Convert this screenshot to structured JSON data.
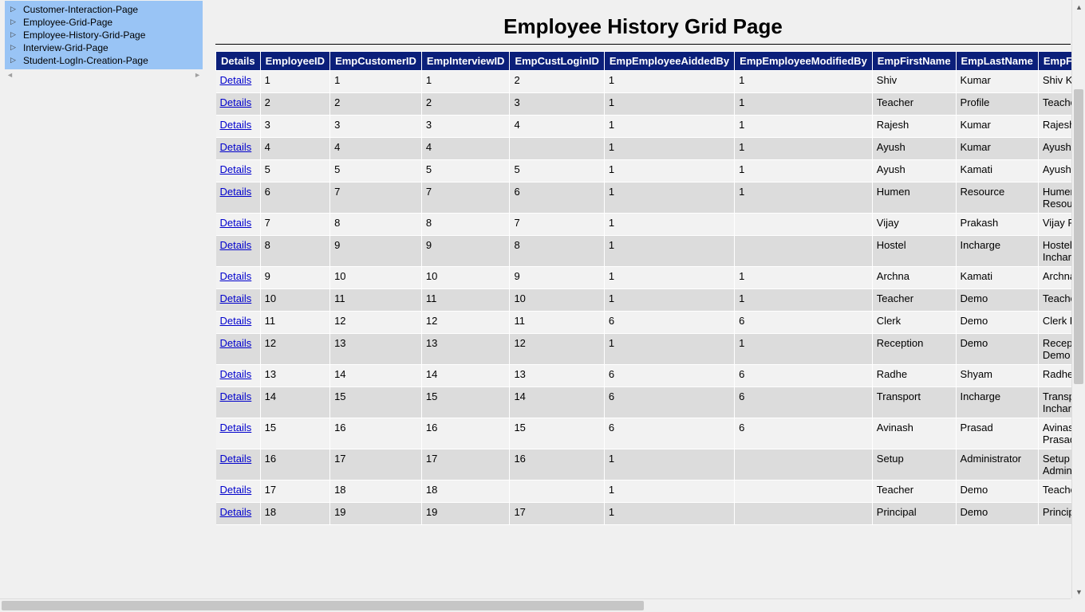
{
  "sidebar": {
    "background_color": "#99c4f5",
    "items": [
      {
        "label": "Customer-Interaction-Page"
      },
      {
        "label": "Employee-Grid-Page"
      },
      {
        "label": "Employee-History-Grid-Page"
      },
      {
        "label": "Interview-Grid-Page"
      },
      {
        "label": "Student-LogIn-Creation-Page"
      }
    ]
  },
  "page": {
    "title": "Employee History Grid Page"
  },
  "grid": {
    "header_bg": "#0b1f7a",
    "header_fg": "#ffffff",
    "row_odd_bg": "#f2f2f2",
    "row_even_bg": "#dcdcdc",
    "details_link_text": "Details",
    "details_link_color": "#0000cc",
    "columns": [
      "Details",
      "EmployeeID",
      "EmpCustomerID",
      "EmpInterviewID",
      "EmpCustLoginID",
      "EmpEmployeeAiddedBy",
      "EmpEmployeeModifiedBy",
      "EmpFirstName",
      "EmpLastName",
      "EmpFullName"
    ],
    "rows": [
      {
        "EmployeeID": "1",
        "EmpCustomerID": "1",
        "EmpInterviewID": "1",
        "EmpCustLoginID": "2",
        "EmpEmployeeAiddedBy": "1",
        "EmpEmployeeModifiedBy": "1",
        "EmpFirstName": "Shiv",
        "EmpLastName": "Kumar",
        "EmpFullName": "Shiv Kumar"
      },
      {
        "EmployeeID": "2",
        "EmpCustomerID": "2",
        "EmpInterviewID": "2",
        "EmpCustLoginID": "3",
        "EmpEmployeeAiddedBy": "1",
        "EmpEmployeeModifiedBy": "1",
        "EmpFirstName": "Teacher",
        "EmpLastName": "Profile",
        "EmpFullName": "Teacher Profile"
      },
      {
        "EmployeeID": "3",
        "EmpCustomerID": "3",
        "EmpInterviewID": "3",
        "EmpCustLoginID": "4",
        "EmpEmployeeAiddedBy": "1",
        "EmpEmployeeModifiedBy": "1",
        "EmpFirstName": "Rajesh",
        "EmpLastName": "Kumar",
        "EmpFullName": "Rajesh Kumar"
      },
      {
        "EmployeeID": "4",
        "EmpCustomerID": "4",
        "EmpInterviewID": "4",
        "EmpCustLoginID": "",
        "EmpEmployeeAiddedBy": "1",
        "EmpEmployeeModifiedBy": "1",
        "EmpFirstName": "Ayush",
        "EmpLastName": "Kumar",
        "EmpFullName": "Ayush Kumar"
      },
      {
        "EmployeeID": "5",
        "EmpCustomerID": "5",
        "EmpInterviewID": "5",
        "EmpCustLoginID": "5",
        "EmpEmployeeAiddedBy": "1",
        "EmpEmployeeModifiedBy": "1",
        "EmpFirstName": "Ayush",
        "EmpLastName": "Kamati",
        "EmpFullName": "Ayush Kamati"
      },
      {
        "EmployeeID": "6",
        "EmpCustomerID": "7",
        "EmpInterviewID": "7",
        "EmpCustLoginID": "6",
        "EmpEmployeeAiddedBy": "1",
        "EmpEmployeeModifiedBy": "1",
        "EmpFirstName": "Humen",
        "EmpLastName": "Resource",
        "EmpFullName": "Humen Resource"
      },
      {
        "EmployeeID": "7",
        "EmpCustomerID": "8",
        "EmpInterviewID": "8",
        "EmpCustLoginID": "7",
        "EmpEmployeeAiddedBy": "1",
        "EmpEmployeeModifiedBy": "",
        "EmpFirstName": "Vijay",
        "EmpLastName": "Prakash",
        "EmpFullName": "Vijay Prakash"
      },
      {
        "EmployeeID": "8",
        "EmpCustomerID": "9",
        "EmpInterviewID": "9",
        "EmpCustLoginID": "8",
        "EmpEmployeeAiddedBy": "1",
        "EmpEmployeeModifiedBy": "",
        "EmpFirstName": "Hostel",
        "EmpLastName": "Incharge",
        "EmpFullName": "Hostel Incharge"
      },
      {
        "EmployeeID": "9",
        "EmpCustomerID": "10",
        "EmpInterviewID": "10",
        "EmpCustLoginID": "9",
        "EmpEmployeeAiddedBy": "1",
        "EmpEmployeeModifiedBy": "1",
        "EmpFirstName": "Archna",
        "EmpLastName": "Kamati",
        "EmpFullName": "Archna Kamati"
      },
      {
        "EmployeeID": "10",
        "EmpCustomerID": "11",
        "EmpInterviewID": "11",
        "EmpCustLoginID": "10",
        "EmpEmployeeAiddedBy": "1",
        "EmpEmployeeModifiedBy": "1",
        "EmpFirstName": "Teacher",
        "EmpLastName": "Demo",
        "EmpFullName": "Teacher Demo"
      },
      {
        "EmployeeID": "11",
        "EmpCustomerID": "12",
        "EmpInterviewID": "12",
        "EmpCustLoginID": "11",
        "EmpEmployeeAiddedBy": "6",
        "EmpEmployeeModifiedBy": "6",
        "EmpFirstName": "Clerk",
        "EmpLastName": "Demo",
        "EmpFullName": "Clerk Demo"
      },
      {
        "EmployeeID": "12",
        "EmpCustomerID": "13",
        "EmpInterviewID": "13",
        "EmpCustLoginID": "12",
        "EmpEmployeeAiddedBy": "1",
        "EmpEmployeeModifiedBy": "1",
        "EmpFirstName": "Reception",
        "EmpLastName": "Demo",
        "EmpFullName": "Reception Demo"
      },
      {
        "EmployeeID": "13",
        "EmpCustomerID": "14",
        "EmpInterviewID": "14",
        "EmpCustLoginID": "13",
        "EmpEmployeeAiddedBy": "6",
        "EmpEmployeeModifiedBy": "6",
        "EmpFirstName": "Radhe",
        "EmpLastName": "Shyam",
        "EmpFullName": "Radhe Shyam"
      },
      {
        "EmployeeID": "14",
        "EmpCustomerID": "15",
        "EmpInterviewID": "15",
        "EmpCustLoginID": "14",
        "EmpEmployeeAiddedBy": "6",
        "EmpEmployeeModifiedBy": "6",
        "EmpFirstName": "Transport",
        "EmpLastName": "Incharge",
        "EmpFullName": "Transport Incharge"
      },
      {
        "EmployeeID": "15",
        "EmpCustomerID": "16",
        "EmpInterviewID": "16",
        "EmpCustLoginID": "15",
        "EmpEmployeeAiddedBy": "6",
        "EmpEmployeeModifiedBy": "6",
        "EmpFirstName": "Avinash",
        "EmpLastName": "Prasad",
        "EmpFullName": "Avinash Prasad"
      },
      {
        "EmployeeID": "16",
        "EmpCustomerID": "17",
        "EmpInterviewID": "17",
        "EmpCustLoginID": "16",
        "EmpEmployeeAiddedBy": "1",
        "EmpEmployeeModifiedBy": "",
        "EmpFirstName": "Setup",
        "EmpLastName": "Administrator",
        "EmpFullName": "Setup Administrator"
      },
      {
        "EmployeeID": "17",
        "EmpCustomerID": "18",
        "EmpInterviewID": "18",
        "EmpCustLoginID": "",
        "EmpEmployeeAiddedBy": "1",
        "EmpEmployeeModifiedBy": "",
        "EmpFirstName": "Teacher",
        "EmpLastName": "Demo",
        "EmpFullName": "Teacher Demo"
      },
      {
        "EmployeeID": "18",
        "EmpCustomerID": "19",
        "EmpInterviewID": "19",
        "EmpCustLoginID": "17",
        "EmpEmployeeAiddedBy": "1",
        "EmpEmployeeModifiedBy": "",
        "EmpFirstName": "Principal",
        "EmpLastName": "Demo",
        "EmpFullName": "Principal Demo"
      }
    ]
  }
}
